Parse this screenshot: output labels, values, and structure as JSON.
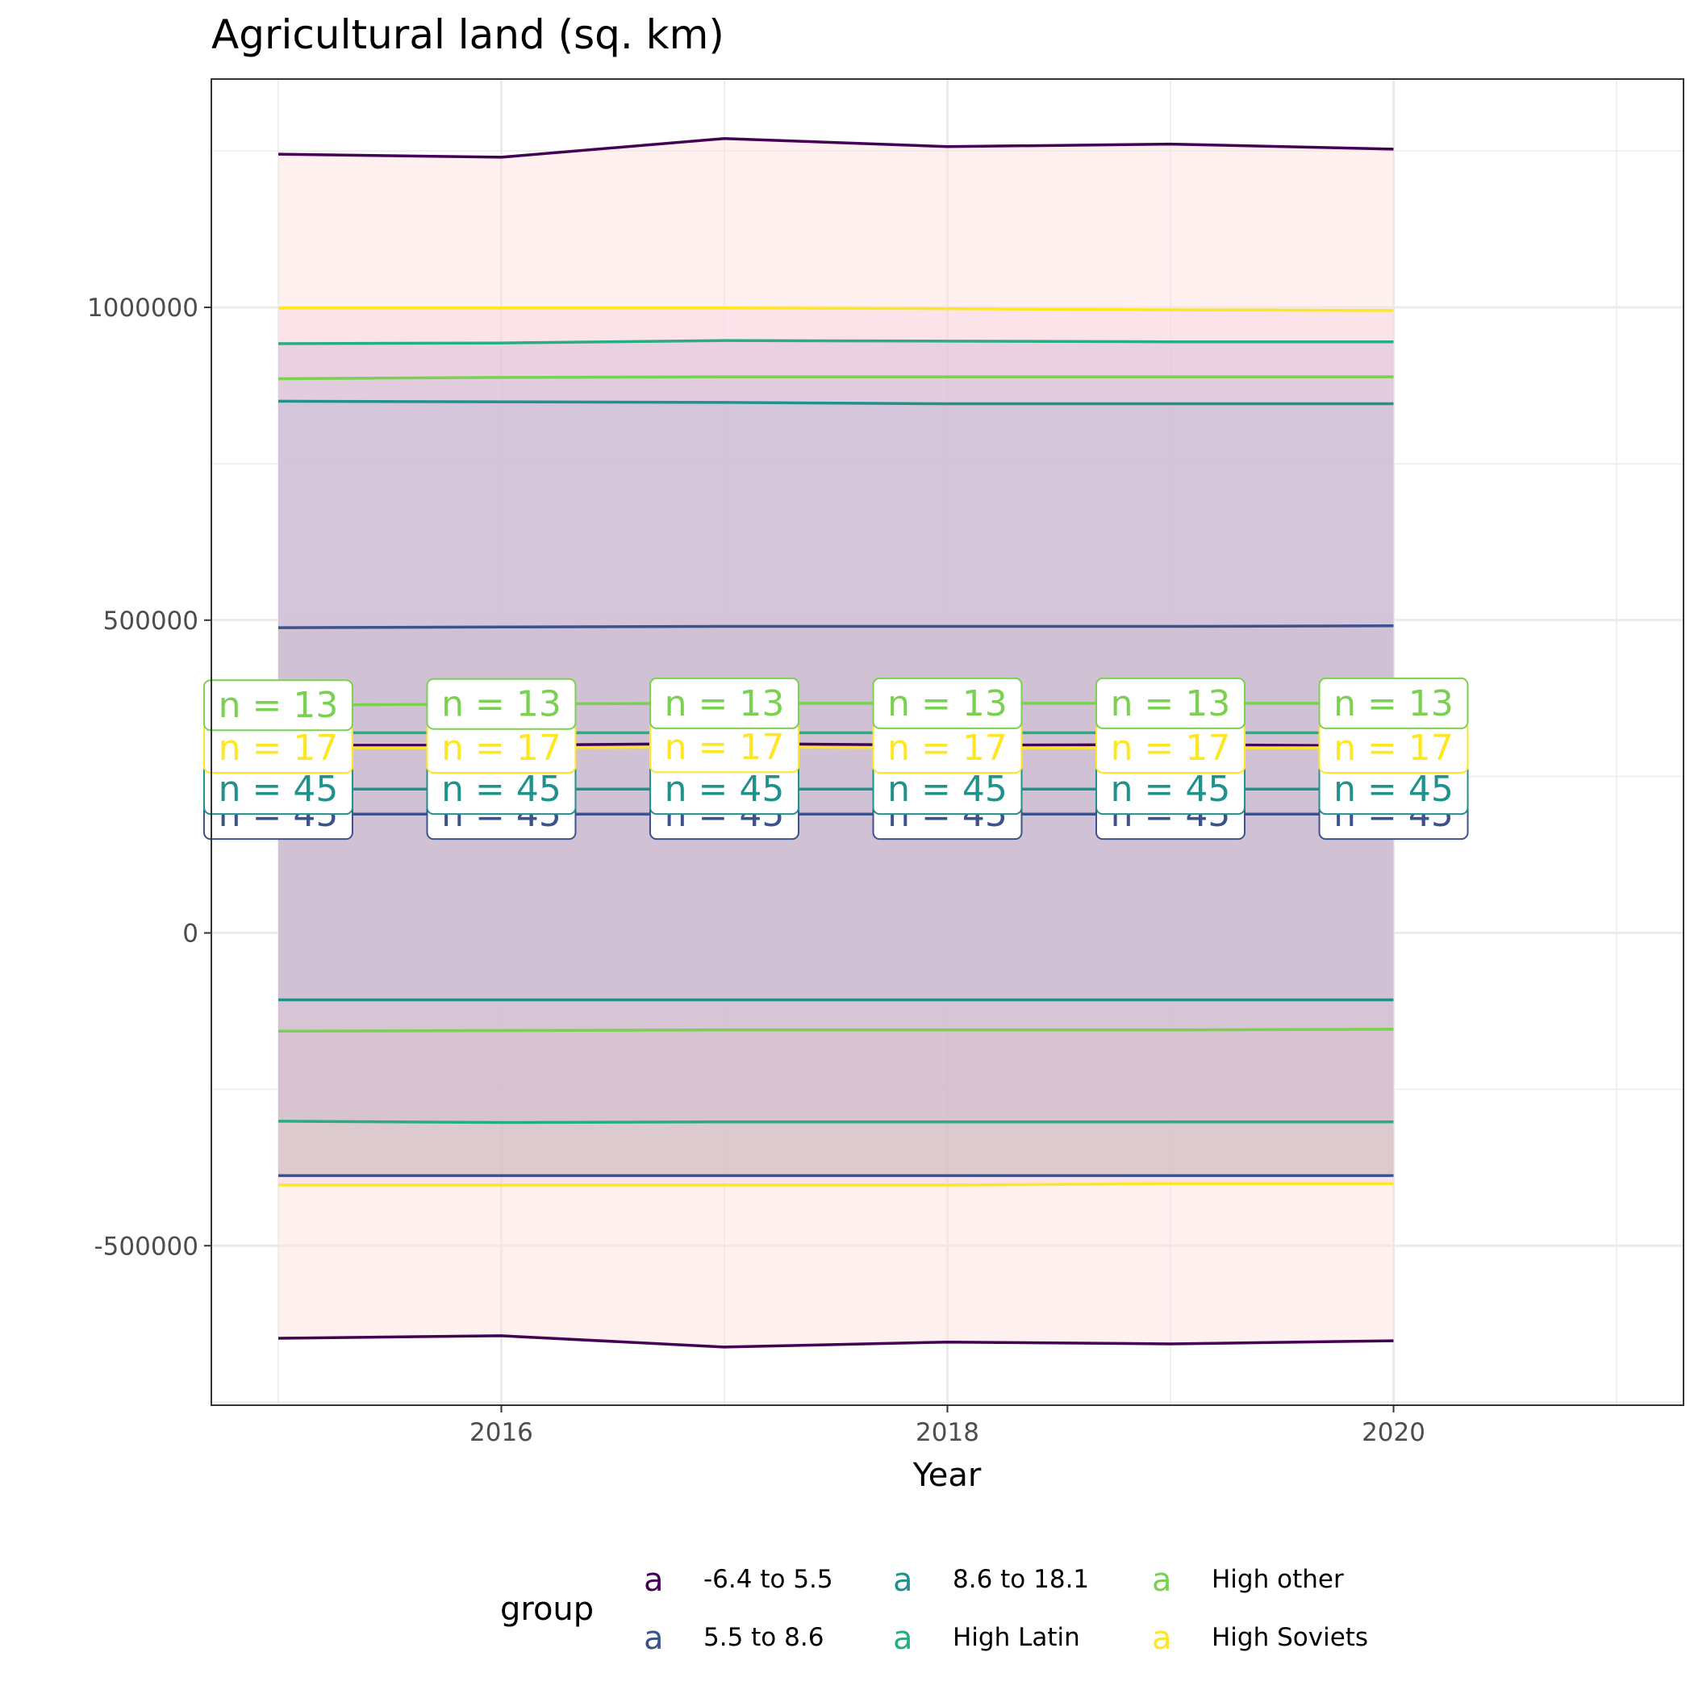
{
  "chart_data": {
    "type": "line",
    "title": "Agricultural land (sq. km)",
    "xlabel": "Year",
    "ylabel": "",
    "x": [
      2015,
      2016,
      2017,
      2018,
      2019,
      2020
    ],
    "xlim": [
      2014.7,
      2021.3
    ],
    "ylim": [
      -755000,
      1365000
    ],
    "x_ticks": [
      2016,
      2018,
      2020
    ],
    "y_ticks": [
      -500000,
      0,
      500000,
      1000000
    ],
    "grid": true,
    "legend": {
      "title": "group",
      "position": "bottom",
      "key_glyph": "a"
    },
    "series": [
      {
        "name": "-6.4 to 5.5",
        "color": "#440154",
        "mean": [
          300000,
          300000,
          303000,
          300000,
          301000,
          299000
        ],
        "upper": [
          1245000,
          1240000,
          1270000,
          1257000,
          1261000,
          1253000
        ],
        "lower": [
          -648000,
          -644000,
          -662000,
          -654000,
          -657000,
          -652000
        ],
        "n": [
          null,
          null,
          null,
          null,
          null,
          null
        ],
        "band_fill": "#fde0dd"
      },
      {
        "name": "5.5 to 8.6",
        "color": "#3b528b",
        "mean": [
          190000,
          190000,
          190000,
          190000,
          190000,
          190000
        ],
        "upper": [
          488000,
          489000,
          490000,
          490000,
          490000,
          491000
        ],
        "lower": [
          -388000,
          -388000,
          -388000,
          -388000,
          -388000,
          -388000
        ],
        "n": [
          45,
          45,
          45,
          45,
          45,
          45
        ],
        "band_fill": "#7e8c7e"
      },
      {
        "name": "8.6 to 18.1",
        "color": "#21918c",
        "mean": [
          230000,
          230000,
          230000,
          230000,
          230000,
          230000
        ],
        "upper": [
          850000,
          849000,
          848000,
          846000,
          846000,
          846000
        ],
        "lower": [
          -107000,
          -107000,
          -107000,
          -107000,
          -107000,
          -107000
        ],
        "n": [
          45,
          45,
          45,
          45,
          45,
          45
        ],
        "band_fill": "#6b93b4"
      },
      {
        "name": "High Latin",
        "color": "#27ad81",
        "mean": [
          320000,
          320000,
          320000,
          320000,
          320000,
          320000
        ],
        "upper": [
          942000,
          943000,
          947000,
          946000,
          945000,
          945000
        ],
        "lower": [
          -301000,
          -303000,
          -302000,
          -302000,
          -302000,
          -302000
        ],
        "n": [
          null,
          null,
          null,
          null,
          null,
          null
        ],
        "band_fill": "#b3a6c9"
      },
      {
        "name": "High other",
        "color": "#7ad151",
        "mean": [
          364000,
          366000,
          367000,
          367000,
          367000,
          367000
        ],
        "upper": [
          886000,
          888000,
          889000,
          889000,
          889000,
          889000
        ],
        "lower": [
          -157000,
          -156000,
          -155000,
          -155000,
          -155000,
          -154000
        ],
        "n": [
          13,
          13,
          13,
          13,
          13,
          13
        ],
        "band_fill": "#b8bed8"
      },
      {
        "name": "High Soviets",
        "color": "#fde725",
        "mean": [
          296000,
          296000,
          297000,
          296000,
          296000,
          296000
        ],
        "upper": [
          999000,
          999000,
          999000,
          998000,
          996000,
          995000
        ],
        "lower": [
          -403000,
          -403000,
          -403000,
          -403000,
          -401000,
          -401000
        ],
        "n": [
          17,
          17,
          17,
          17,
          17,
          17
        ],
        "band_fill": "#fbd2e3"
      }
    ]
  }
}
